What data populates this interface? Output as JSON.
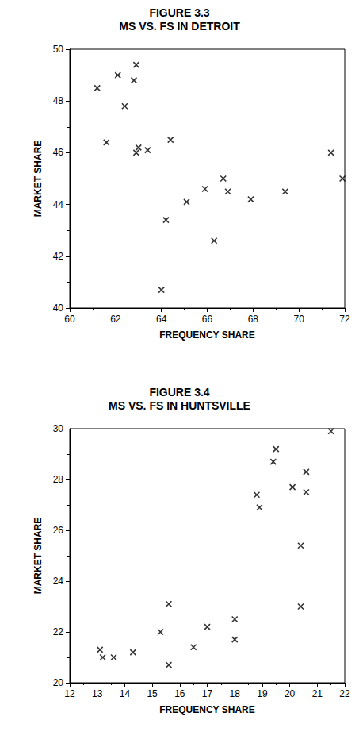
{
  "chart_data": [
    {
      "type": "scatter",
      "title": "FIGURE 3.3",
      "subtitle": "MS VS. FS IN DETROIT",
      "x_label": "FREQUENCY SHARE",
      "y_label": "MARKET SHARE",
      "x": [
        61.2,
        61.6,
        62.1,
        62.4,
        62.8,
        62.9,
        62.9,
        63.0,
        63.4,
        64.4,
        64.0,
        64.2,
        65.1,
        65.9,
        66.3,
        66.7,
        66.9,
        67.9,
        69.4,
        71.4,
        71.9
      ],
      "values": [
        48.5,
        46.4,
        49.0,
        47.8,
        48.8,
        49.4,
        46.0,
        46.2,
        46.1,
        46.5,
        40.7,
        43.4,
        44.1,
        44.6,
        42.6,
        45.0,
        44.5,
        44.2,
        44.5,
        46.0,
        45.0
      ],
      "color": "#000000",
      "marker": "x",
      "xlim": [
        60,
        72
      ],
      "xticks": [
        60,
        62,
        64,
        66,
        68,
        70,
        72
      ],
      "ylim": [
        40,
        50
      ],
      "yticks": [
        40,
        42,
        44,
        46,
        48,
        50
      ],
      "grid": false
    },
    {
      "type": "scatter",
      "title": "FIGURE 3.4",
      "subtitle": "MS VS. FS IN HUNTSVILLE",
      "x_label": "FREQUENCY SHARE",
      "y_label": "MARKET SHARE",
      "x": [
        13.1,
        13.2,
        13.6,
        14.3,
        15.3,
        15.6,
        15.6,
        16.5,
        17.0,
        18.0,
        18.0,
        18.8,
        18.9,
        19.4,
        19.5,
        20.1,
        20.4,
        20.4,
        20.6,
        20.6,
        21.5
      ],
      "values": [
        21.3,
        21.0,
        21.0,
        21.2,
        22.0,
        23.1,
        20.7,
        21.4,
        22.2,
        22.5,
        21.7,
        27.4,
        26.9,
        28.7,
        29.2,
        27.7,
        25.4,
        23.0,
        28.3,
        27.5,
        29.9
      ],
      "color": "#000000",
      "marker": "x",
      "xlim": [
        12,
        22
      ],
      "xticks": [
        12,
        13,
        14,
        15,
        16,
        17,
        18,
        19,
        20,
        21,
        22
      ],
      "ylim": [
        20,
        30
      ],
      "yticks": [
        20,
        22,
        24,
        26,
        28,
        30
      ],
      "grid": false
    }
  ]
}
